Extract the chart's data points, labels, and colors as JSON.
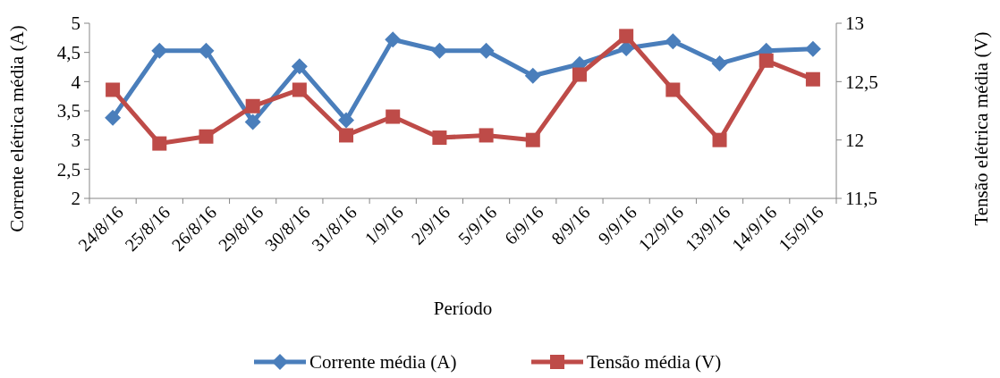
{
  "chart_data": {
    "type": "line",
    "xlabel": "Período",
    "ylabel": "Corrente elétrica média (A)",
    "y2label": "Tensão elétrica média (V)",
    "categories": [
      "24/8/16",
      "25/8/16",
      "26/8/16",
      "29/8/16",
      "30/8/16",
      "31/8/16",
      "1/9/16",
      "2/9/16",
      "5/9/16",
      "6/9/16",
      "8/9/16",
      "9/9/16",
      "12/9/16",
      "13/9/16",
      "14/9/16",
      "15/9/16"
    ],
    "series": [
      {
        "name": "Corrente média (A)",
        "color": "#4a7ebb",
        "marker": "diamond",
        "values": [
          3.38,
          4.53,
          4.53,
          3.31,
          4.26,
          3.34,
          4.72,
          4.53,
          4.53,
          4.1,
          4.3,
          4.57,
          4.69,
          4.31,
          4.53,
          4.56
        ]
      },
      {
        "name": "Tensão média (V)",
        "color": "#be4b48",
        "marker": "square",
        "axis": "y2",
        "values": [
          12.43,
          11.97,
          12.03,
          12.29,
          12.43,
          12.04,
          12.2,
          12.02,
          12.04,
          12,
          12.56,
          12.89,
          12.43,
          12,
          12.68,
          12.52
        ]
      }
    ],
    "ylim": [
      2,
      5
    ],
    "yticks": [
      2,
      {
        "value": 2.5,
        "label": "2,5"
      },
      3,
      {
        "value": 3.5,
        "label": "3,5"
      },
      4,
      {
        "value": 4.5,
        "label": "4,5"
      },
      5
    ],
    "y2lim": [
      11.5,
      13
    ],
    "y2ticks": [
      {
        "value": 11.5,
        "label": "11,5"
      },
      12,
      {
        "value": 12.5,
        "label": "12,5"
      },
      13
    ],
    "legend": "bottom",
    "grid": false
  }
}
